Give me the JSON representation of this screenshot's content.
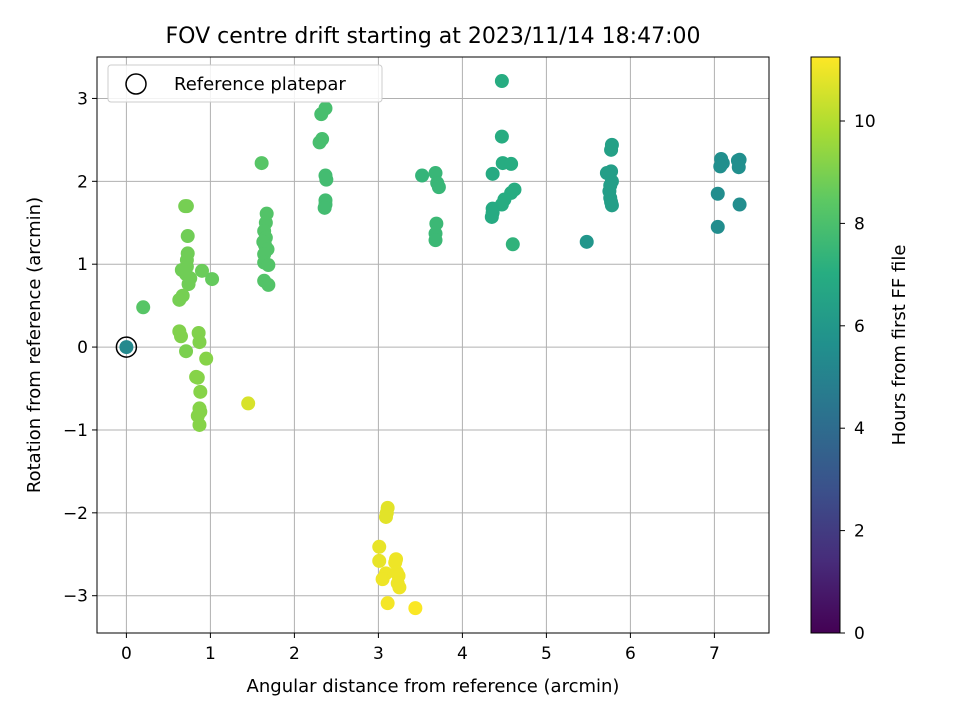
{
  "chart_data": {
    "type": "scatter",
    "title": "FOV centre drift starting at 2023/11/14 18:47:00",
    "xlabel": "Angular distance from reference (arcmin)",
    "ylabel": "Rotation from reference (arcmin)",
    "xlim": [
      -0.35,
      7.65
    ],
    "ylim": [
      -3.45,
      3.5
    ],
    "xticks": [
      0,
      1,
      2,
      3,
      4,
      5,
      6,
      7
    ],
    "yticks": [
      -3,
      -2,
      -1,
      0,
      1,
      2,
      3
    ],
    "xtick_labels": [
      "0",
      "1",
      "2",
      "3",
      "4",
      "5",
      "6",
      "7"
    ],
    "ytick_labels": [
      "−3",
      "−2",
      "−1",
      "0",
      "1",
      "2",
      "3"
    ],
    "grid": true,
    "legend": {
      "placement": "upper-left",
      "entries": [
        "Reference platepar"
      ]
    },
    "colorbar": {
      "label": "Hours from first FF file",
      "range": [
        0,
        11.25
      ],
      "ticks": [
        0,
        2,
        4,
        6,
        8,
        10
      ],
      "tick_labels": [
        "0",
        "2",
        "4",
        "6",
        "8",
        "10"
      ],
      "colormap": "viridis"
    },
    "reference_point": {
      "x": 0,
      "y": 0,
      "t": 5.3
    },
    "points": [
      {
        "x": 0.0,
        "y": 0.0,
        "t": 5.3
      },
      {
        "x": 7.08,
        "y": 2.27,
        "t": 5.6
      },
      {
        "x": 7.1,
        "y": 2.22,
        "t": 5.6
      },
      {
        "x": 7.07,
        "y": 2.18,
        "t": 5.6
      },
      {
        "x": 7.28,
        "y": 2.25,
        "t": 5.6
      },
      {
        "x": 7.3,
        "y": 2.26,
        "t": 5.6
      },
      {
        "x": 7.29,
        "y": 2.17,
        "t": 5.6
      },
      {
        "x": 7.04,
        "y": 1.85,
        "t": 5.5
      },
      {
        "x": 7.3,
        "y": 1.72,
        "t": 5.5
      },
      {
        "x": 7.04,
        "y": 1.45,
        "t": 5.5
      },
      {
        "x": 5.72,
        "y": 2.1,
        "t": 6.3
      },
      {
        "x": 5.77,
        "y": 2.38,
        "t": 6.4
      },
      {
        "x": 5.78,
        "y": 2.44,
        "t": 6.4
      },
      {
        "x": 5.77,
        "y": 2.12,
        "t": 6.3
      },
      {
        "x": 5.78,
        "y": 2.0,
        "t": 6.3
      },
      {
        "x": 5.76,
        "y": 1.95,
        "t": 6.3
      },
      {
        "x": 5.75,
        "y": 1.88,
        "t": 6.3
      },
      {
        "x": 5.76,
        "y": 1.8,
        "t": 6.3
      },
      {
        "x": 5.77,
        "y": 1.75,
        "t": 6.3
      },
      {
        "x": 5.78,
        "y": 1.71,
        "t": 6.3
      },
      {
        "x": 5.48,
        "y": 1.27,
        "t": 5.9
      },
      {
        "x": 4.47,
        "y": 3.21,
        "t": 7.0
      },
      {
        "x": 4.47,
        "y": 2.54,
        "t": 7.0
      },
      {
        "x": 4.48,
        "y": 2.22,
        "t": 7.0
      },
      {
        "x": 4.58,
        "y": 2.21,
        "t": 7.0
      },
      {
        "x": 4.36,
        "y": 2.09,
        "t": 6.9
      },
      {
        "x": 4.62,
        "y": 1.9,
        "t": 7.0
      },
      {
        "x": 4.58,
        "y": 1.86,
        "t": 7.0
      },
      {
        "x": 4.5,
        "y": 1.78,
        "t": 7.0
      },
      {
        "x": 4.47,
        "y": 1.72,
        "t": 7.0
      },
      {
        "x": 4.36,
        "y": 1.67,
        "t": 6.9
      },
      {
        "x": 4.36,
        "y": 1.62,
        "t": 6.9
      },
      {
        "x": 4.35,
        "y": 1.57,
        "t": 6.9
      },
      {
        "x": 4.6,
        "y": 1.24,
        "t": 7.3
      },
      {
        "x": 3.52,
        "y": 2.07,
        "t": 7.4
      },
      {
        "x": 3.68,
        "y": 2.1,
        "t": 7.5
      },
      {
        "x": 3.7,
        "y": 1.98,
        "t": 7.5
      },
      {
        "x": 3.72,
        "y": 1.93,
        "t": 7.5
      },
      {
        "x": 3.69,
        "y": 1.49,
        "t": 7.6
      },
      {
        "x": 3.68,
        "y": 1.37,
        "t": 7.6
      },
      {
        "x": 3.68,
        "y": 1.29,
        "t": 7.6
      },
      {
        "x": 2.37,
        "y": 2.88,
        "t": 7.9
      },
      {
        "x": 2.32,
        "y": 2.81,
        "t": 7.9
      },
      {
        "x": 2.33,
        "y": 2.51,
        "t": 7.9
      },
      {
        "x": 2.3,
        "y": 2.47,
        "t": 7.9
      },
      {
        "x": 2.37,
        "y": 2.07,
        "t": 7.8
      },
      {
        "x": 2.38,
        "y": 2.02,
        "t": 7.8
      },
      {
        "x": 2.37,
        "y": 1.77,
        "t": 7.8
      },
      {
        "x": 2.37,
        "y": 1.72,
        "t": 7.8
      },
      {
        "x": 2.36,
        "y": 1.68,
        "t": 7.8
      },
      {
        "x": 1.61,
        "y": 2.22,
        "t": 8.3
      },
      {
        "x": 1.67,
        "y": 1.61,
        "t": 8.2
      },
      {
        "x": 1.66,
        "y": 1.5,
        "t": 8.2
      },
      {
        "x": 1.64,
        "y": 1.4,
        "t": 8.2
      },
      {
        "x": 1.66,
        "y": 1.32,
        "t": 8.2
      },
      {
        "x": 1.63,
        "y": 1.27,
        "t": 8.2
      },
      {
        "x": 1.65,
        "y": 1.23,
        "t": 8.2
      },
      {
        "x": 1.68,
        "y": 1.18,
        "t": 8.2
      },
      {
        "x": 1.64,
        "y": 1.12,
        "t": 8.2
      },
      {
        "x": 1.64,
        "y": 1.02,
        "t": 8.2
      },
      {
        "x": 1.69,
        "y": 0.99,
        "t": 8.2
      },
      {
        "x": 1.64,
        "y": 0.8,
        "t": 8.2
      },
      {
        "x": 1.69,
        "y": 0.75,
        "t": 8.2
      },
      {
        "x": 0.72,
        "y": 1.7,
        "t": 8.9
      },
      {
        "x": 0.7,
        "y": 1.7,
        "t": 8.9
      },
      {
        "x": 0.73,
        "y": 1.34,
        "t": 8.8
      },
      {
        "x": 0.73,
        "y": 1.13,
        "t": 8.8
      },
      {
        "x": 0.72,
        "y": 1.05,
        "t": 8.8
      },
      {
        "x": 0.72,
        "y": 0.97,
        "t": 8.8
      },
      {
        "x": 0.66,
        "y": 0.93,
        "t": 8.8
      },
      {
        "x": 0.71,
        "y": 0.88,
        "t": 8.8
      },
      {
        "x": 0.76,
        "y": 0.83,
        "t": 8.8
      },
      {
        "x": 0.74,
        "y": 0.76,
        "t": 8.8
      },
      {
        "x": 0.9,
        "y": 0.92,
        "t": 8.7
      },
      {
        "x": 1.02,
        "y": 0.82,
        "t": 8.6
      },
      {
        "x": 0.67,
        "y": 0.62,
        "t": 8.9
      },
      {
        "x": 0.63,
        "y": 0.57,
        "t": 8.9
      },
      {
        "x": 0.2,
        "y": 0.48,
        "t": 8.3
      },
      {
        "x": 0.63,
        "y": 0.19,
        "t": 9.1
      },
      {
        "x": 0.65,
        "y": 0.13,
        "t": 9.1
      },
      {
        "x": 0.86,
        "y": 0.17,
        "t": 9.1
      },
      {
        "x": 0.87,
        "y": 0.06,
        "t": 9.1
      },
      {
        "x": 0.71,
        "y": -0.05,
        "t": 9.0
      },
      {
        "x": 0.95,
        "y": -0.14,
        "t": 9.2
      },
      {
        "x": 0.83,
        "y": -0.36,
        "t": 9.2
      },
      {
        "x": 0.85,
        "y": -0.37,
        "t": 9.2
      },
      {
        "x": 0.88,
        "y": -0.54,
        "t": 9.2
      },
      {
        "x": 0.87,
        "y": -0.74,
        "t": 9.2
      },
      {
        "x": 0.88,
        "y": -0.78,
        "t": 9.2
      },
      {
        "x": 0.85,
        "y": -0.83,
        "t": 9.2
      },
      {
        "x": 0.87,
        "y": -0.94,
        "t": 9.2
      },
      {
        "x": 1.45,
        "y": -0.68,
        "t": 10.6
      },
      {
        "x": 3.11,
        "y": -1.94,
        "t": 10.8
      },
      {
        "x": 3.1,
        "y": -2.0,
        "t": 10.8
      },
      {
        "x": 3.09,
        "y": -2.05,
        "t": 10.8
      },
      {
        "x": 3.01,
        "y": -2.41,
        "t": 10.9
      },
      {
        "x": 3.21,
        "y": -2.56,
        "t": 11.0
      },
      {
        "x": 3.2,
        "y": -2.6,
        "t": 11.0
      },
      {
        "x": 3.01,
        "y": -2.58,
        "t": 10.9
      },
      {
        "x": 3.09,
        "y": -2.73,
        "t": 11.0
      },
      {
        "x": 3.22,
        "y": -2.72,
        "t": 11.0
      },
      {
        "x": 3.24,
        "y": -2.76,
        "t": 11.0
      },
      {
        "x": 3.05,
        "y": -2.8,
        "t": 11.0
      },
      {
        "x": 3.23,
        "y": -2.85,
        "t": 11.0
      },
      {
        "x": 3.25,
        "y": -2.9,
        "t": 11.0
      },
      {
        "x": 3.11,
        "y": -3.09,
        "t": 11.1
      },
      {
        "x": 3.44,
        "y": -3.15,
        "t": 11.2
      }
    ]
  }
}
